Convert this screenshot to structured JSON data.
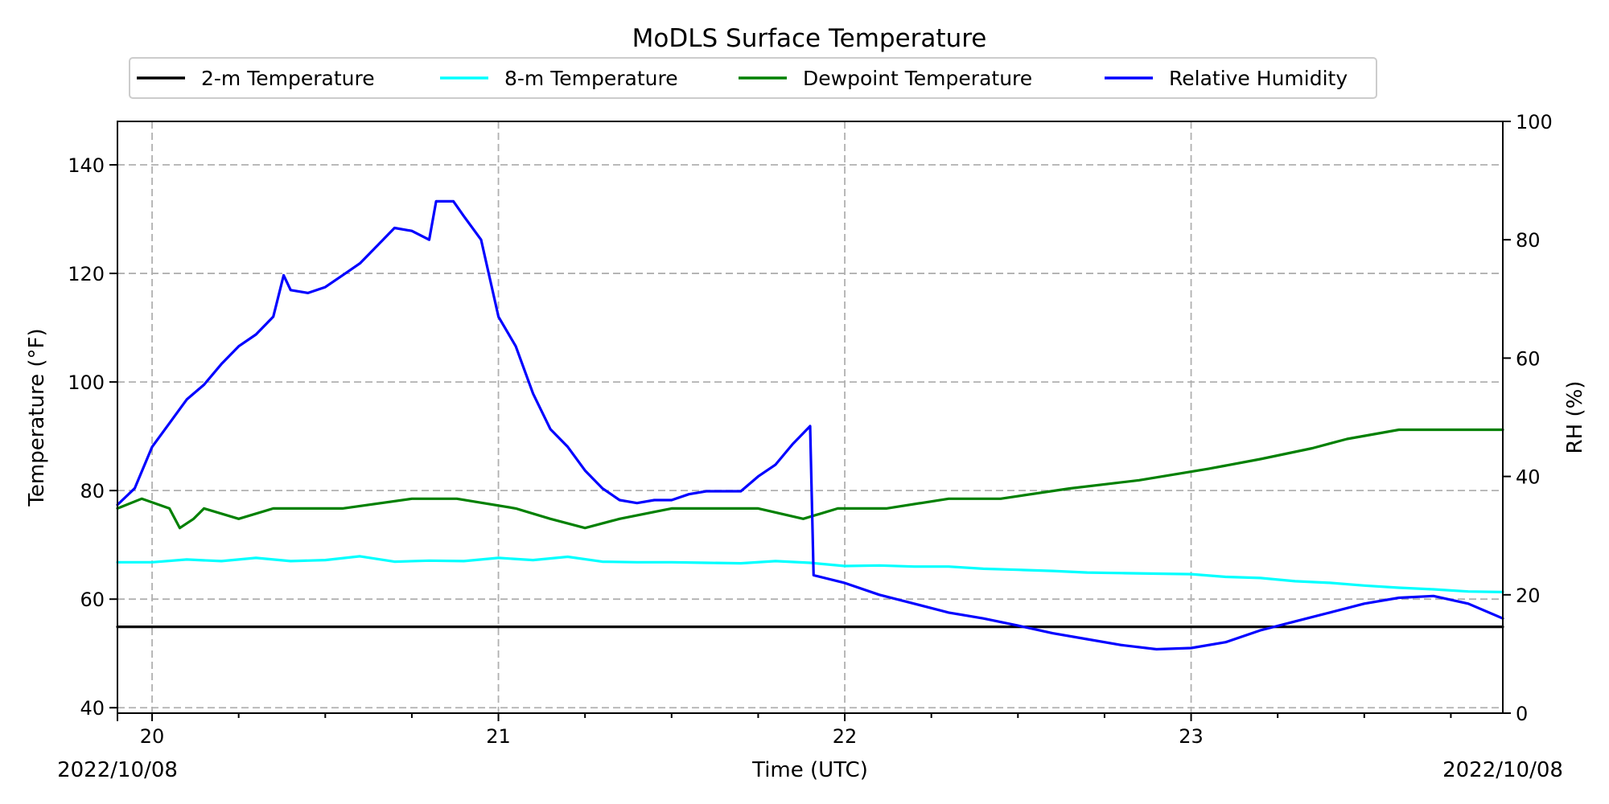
{
  "chart_data": {
    "type": "line",
    "title": "MoDLS Surface Temperature",
    "xlabel": "Time (UTC)",
    "ylabel": "Temperature ($^\\circ$F)",
    "ylabel_display": "Temperature (°F)",
    "y2label": "RH (%)",
    "date_left": "2022/10/08",
    "date_right": "2022/10/08",
    "xlim": [
      19.9,
      23.9
    ],
    "ylim": [
      39,
      148
    ],
    "y2lim": [
      0,
      100
    ],
    "x_ticks": [
      20,
      21,
      22,
      23
    ],
    "x_tick_labels": [
      "20",
      "21",
      "22",
      "23"
    ],
    "x_minor_ticks": [
      20.25,
      20.5,
      20.75,
      21.25,
      21.5,
      21.75,
      22.25,
      22.5,
      22.75,
      23.25,
      23.5,
      23.75
    ],
    "y_ticks": [
      40,
      60,
      80,
      100,
      120,
      140
    ],
    "y2_ticks": [
      0,
      20,
      40,
      60,
      80,
      100
    ],
    "grid": true,
    "legend_position": "top",
    "series": [
      {
        "name": "2-m Temperature",
        "axis": "left",
        "color": "#000000",
        "x": [
          19.9,
          23.9
        ],
        "y": [
          54.9,
          54.9
        ]
      },
      {
        "name": "8-m Temperature",
        "axis": "left",
        "color": "#00ffff",
        "x": [
          19.9,
          20.0,
          20.1,
          20.2,
          20.3,
          20.4,
          20.5,
          20.6,
          20.7,
          20.8,
          20.9,
          21.0,
          21.1,
          21.2,
          21.3,
          21.4,
          21.5,
          21.6,
          21.7,
          21.8,
          21.9,
          22.0,
          22.1,
          22.2,
          22.3,
          22.4,
          22.5,
          22.6,
          22.7,
          22.8,
          22.9,
          23.0,
          23.1,
          23.2,
          23.3,
          23.4,
          23.5,
          23.6,
          23.7,
          23.8,
          23.9
        ],
        "y": [
          66.8,
          66.8,
          67.3,
          67.0,
          67.6,
          67.0,
          67.2,
          67.9,
          66.9,
          67.1,
          67.0,
          67.6,
          67.2,
          67.8,
          66.9,
          66.8,
          66.8,
          66.7,
          66.6,
          67.0,
          66.7,
          66.1,
          66.2,
          66.0,
          66.0,
          65.6,
          65.4,
          65.2,
          64.9,
          64.8,
          64.7,
          64.6,
          64.1,
          63.9,
          63.3,
          63.0,
          62.5,
          62.1,
          61.8,
          61.4,
          61.3
        ]
      },
      {
        "name": "Dewpoint Temperature",
        "axis": "left",
        "color": "#008000",
        "x": [
          19.9,
          19.97,
          20.05,
          20.08,
          20.12,
          20.15,
          20.25,
          20.35,
          20.45,
          20.55,
          20.75,
          20.88,
          21.05,
          21.15,
          21.25,
          21.35,
          21.5,
          21.62,
          21.75,
          21.88,
          21.98,
          22.12,
          22.3,
          22.45,
          22.65,
          22.85,
          23.05,
          23.2,
          23.35,
          23.45,
          23.6,
          23.9
        ],
        "y": [
          76.7,
          78.5,
          76.7,
          73.1,
          74.8,
          76.7,
          74.8,
          76.7,
          76.7,
          76.7,
          78.5,
          78.5,
          76.7,
          74.8,
          73.1,
          74.8,
          76.7,
          76.7,
          76.7,
          74.8,
          76.7,
          76.7,
          78.5,
          78.5,
          80.4,
          81.9,
          84.0,
          85.8,
          87.8,
          89.5,
          91.2,
          91.2
        ]
      },
      {
        "name": "Relative Humidity",
        "axis": "right",
        "color": "#0000ff",
        "x": [
          19.9,
          19.95,
          20.0,
          20.05,
          20.1,
          20.15,
          20.2,
          20.25,
          20.3,
          20.35,
          20.38,
          20.4,
          20.45,
          20.5,
          20.55,
          20.6,
          20.65,
          20.7,
          20.75,
          20.8,
          20.82,
          20.87,
          20.9,
          20.95,
          21.0,
          21.05,
          21.1,
          21.15,
          21.2,
          21.25,
          21.3,
          21.35,
          21.4,
          21.45,
          21.5,
          21.55,
          21.6,
          21.7,
          21.75,
          21.8,
          21.85,
          21.9,
          21.91,
          22.0,
          22.1,
          22.2,
          22.3,
          22.4,
          22.5,
          22.6,
          22.7,
          22.8,
          22.9,
          23.0,
          23.1,
          23.2,
          23.3,
          23.4,
          23.5,
          23.6,
          23.7,
          23.8,
          23.9
        ],
        "y": [
          35.2,
          38.0,
          45.0,
          49.0,
          53.0,
          55.5,
          59.0,
          62.0,
          64.0,
          67.0,
          74.0,
          71.5,
          71.0,
          72.0,
          74.0,
          76.0,
          79.0,
          82.0,
          81.5,
          80.0,
          86.5,
          86.5,
          84.0,
          80.0,
          67.0,
          62.0,
          54.0,
          48.0,
          45.0,
          41.0,
          38.0,
          36.0,
          35.5,
          36.0,
          36.0,
          37.0,
          37.5,
          37.5,
          40.0,
          42.0,
          45.5,
          48.5,
          23.3,
          22.0,
          20.0,
          18.5,
          17.0,
          16.0,
          14.8,
          13.5,
          12.5,
          11.5,
          10.8,
          11.0,
          12.0,
          14.0,
          15.5,
          17.0,
          18.5,
          19.5,
          19.8,
          18.5,
          16.0
        ]
      }
    ]
  }
}
